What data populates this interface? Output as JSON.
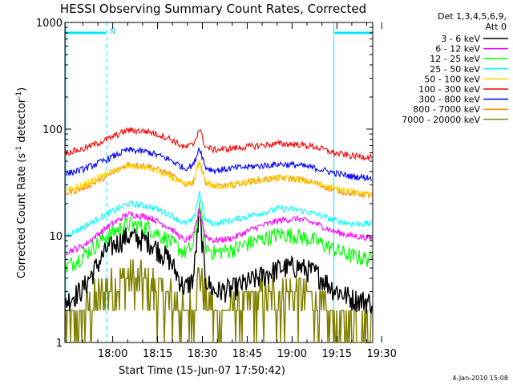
{
  "chart_data": {
    "type": "line",
    "title": "HESSI Observing Summary Count Rates, Corrected",
    "xlabel": "Start Time (15-Jun-07 17:50:42)",
    "ylabel_prefix": "Corrected Count Rate (s",
    "ylabel_sup1": "-1",
    "ylabel_mid": " detector",
    "ylabel_sup2": "-1",
    "ylabel_suffix": ")",
    "yscale": "log",
    "ylim": [
      1,
      1000
    ],
    "xlim_minutes": [
      -6,
      97
    ],
    "x_ticks": [
      {
        "label": "18:00",
        "minute": 10
      },
      {
        "label": "18:15",
        "minute": 25
      },
      {
        "label": "18:30",
        "minute": 40
      },
      {
        "label": "18:45",
        "minute": 55
      },
      {
        "label": "19:00",
        "minute": 70
      },
      {
        "label": "19:15",
        "minute": 85
      },
      {
        "label": "19:30",
        "minute": 100
      }
    ],
    "y_ticks": [
      {
        "label": "1",
        "value": 1
      },
      {
        "label": "10",
        "value": 10
      },
      {
        "label": "100",
        "value": 100
      },
      {
        "label": "1000",
        "value": 1000
      }
    ],
    "legend_header": [
      "Det 1,3,4,5,6,9,",
      "Att 0"
    ],
    "legend_position": "right",
    "night_intervals_minutes": [
      [
        -6,
        8
      ],
      [
        84,
        97
      ]
    ],
    "saa_flag": "N",
    "x_minutes": [
      -6,
      0,
      8,
      15,
      22,
      29,
      34,
      37,
      39,
      41,
      44,
      50,
      58,
      66,
      72,
      78,
      84,
      90,
      97
    ],
    "series": [
      {
        "name": "3 - 6 keV",
        "color": "#000000",
        "values": [
          2.4,
          3.2,
          7.5,
          10,
          9,
          6,
          3.2,
          4,
          17,
          4,
          3,
          3.2,
          4,
          5,
          5.2,
          4.5,
          3.2,
          2.6,
          2.4
        ]
      },
      {
        "name": "6 - 12 keV",
        "color": "#ff00ff",
        "values": [
          7,
          8,
          12,
          16,
          15,
          12,
          9,
          10,
          18,
          10,
          9,
          9.5,
          12,
          14,
          14.5,
          13,
          11,
          10,
          9.5
        ]
      },
      {
        "name": "12 - 25 keV",
        "color": "#00ff00",
        "values": [
          5,
          6.5,
          10,
          13,
          12,
          9,
          7,
          8,
          20,
          8,
          7,
          7.5,
          9,
          10.5,
          10,
          9,
          7.5,
          6.5,
          6
        ]
      },
      {
        "name": "25 - 50 keV",
        "color": "#00ffff",
        "values": [
          10,
          12,
          16,
          20,
          19,
          16,
          13,
          14,
          26,
          14,
          13,
          14,
          16,
          18,
          17.5,
          16,
          14,
          13,
          13
        ]
      },
      {
        "name": "50 - 100 keV",
        "color": "#ffd700",
        "values": [
          26,
          30,
          38,
          45,
          43,
          36,
          30,
          32,
          50,
          32,
          29,
          30,
          33,
          35,
          34,
          31,
          28,
          26,
          25
        ]
      },
      {
        "name": "100 - 300 keV",
        "color": "#ff0000",
        "values": [
          60,
          65,
          80,
          98,
          95,
          82,
          67,
          72,
          102,
          68,
          64,
          66,
          70,
          73,
          72,
          68,
          60,
          56,
          55
        ]
      },
      {
        "name": "300 - 800 keV",
        "color": "#0000ff",
        "values": [
          38,
          42,
          52,
          64,
          61,
          52,
          43,
          46,
          68,
          44,
          41,
          43,
          45,
          47,
          46,
          43,
          39,
          36,
          35
        ]
      },
      {
        "name": "800 - 7000 keV",
        "color": "#ff8c00",
        "values": [
          25,
          28,
          36,
          47,
          45,
          38,
          30,
          32,
          52,
          32,
          29,
          30,
          33,
          35,
          34,
          31,
          27,
          25,
          24
        ]
      },
      {
        "name": "7000 - 20000 keV",
        "color": "#808000",
        "values": [
          1.4,
          1.8,
          3,
          4,
          3.5,
          2.5,
          1.8,
          2.2,
          4.5,
          2.5,
          1.8,
          2.0,
          2.4,
          2.8,
          2.8,
          2.4,
          1.6,
          1.5,
          1.4
        ]
      }
    ]
  },
  "timestamp": "4-Jan-2010 15:08"
}
